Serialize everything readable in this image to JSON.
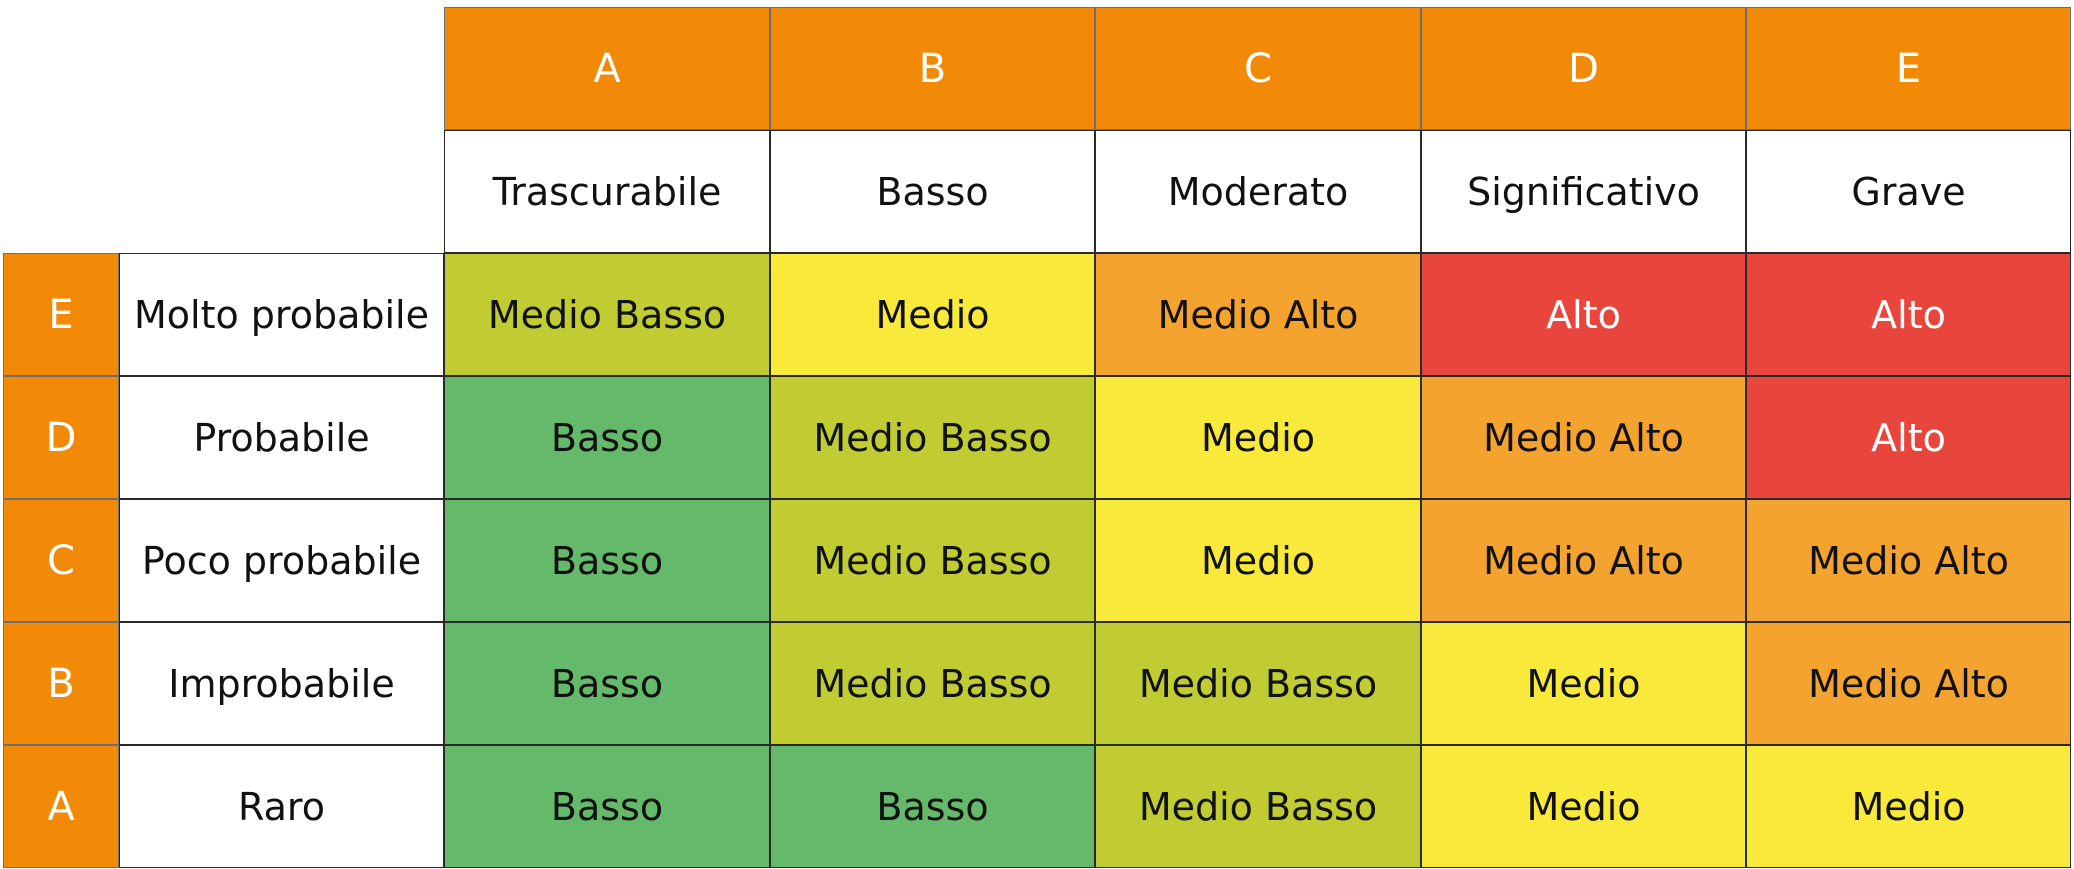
{
  "columns": [
    {
      "code": "A",
      "label": "Trascurabile"
    },
    {
      "code": "B",
      "label": "Basso"
    },
    {
      "code": "C",
      "label": "Moderato"
    },
    {
      "code": "D",
      "label": "Significativo"
    },
    {
      "code": "E",
      "label": "Grave"
    }
  ],
  "rows": [
    {
      "code": "E",
      "label": "Molto probabile",
      "cells": [
        {
          "text": "Medio Basso",
          "color": "#c0cc32"
        },
        {
          "text": "Medio",
          "color": "#f9e93b"
        },
        {
          "text": "Medio Alto",
          "color": "#f4a42e"
        },
        {
          "text": "Alto",
          "color": "#e8463d",
          "text_color": "#ffffff"
        },
        {
          "text": "Alto",
          "color": "#e8463d",
          "text_color": "#ffffff"
        }
      ]
    },
    {
      "code": "D",
      "label": "Probabile",
      "cells": [
        {
          "text": "Basso",
          "color": "#65b96a"
        },
        {
          "text": "Medio Basso",
          "color": "#c0cc32"
        },
        {
          "text": "Medio",
          "color": "#f9e93b"
        },
        {
          "text": "Medio Alto",
          "color": "#f4a42e"
        },
        {
          "text": "Alto",
          "color": "#e8463d",
          "text_color": "#ffffff"
        }
      ]
    },
    {
      "code": "C",
      "label": "Poco probabile",
      "cells": [
        {
          "text": "Basso",
          "color": "#65b96a"
        },
        {
          "text": "Medio Basso",
          "color": "#c0cc32"
        },
        {
          "text": "Medio",
          "color": "#f9e93b"
        },
        {
          "text": "Medio Alto",
          "color": "#f4a42e"
        },
        {
          "text": "Medio Alto",
          "color": "#f4a42e"
        }
      ]
    },
    {
      "code": "B",
      "label": "Improbabile",
      "cells": [
        {
          "text": "Basso",
          "color": "#65b96a"
        },
        {
          "text": "Medio Basso",
          "color": "#c0cc32"
        },
        {
          "text": "Medio Basso",
          "color": "#c0cc32"
        },
        {
          "text": "Medio",
          "color": "#f9e93b"
        },
        {
          "text": "Medio Alto",
          "color": "#f4a42e"
        }
      ]
    },
    {
      "code": "A",
      "label": "Raro",
      "cells": [
        {
          "text": "Basso",
          "color": "#65b96a"
        },
        {
          "text": "Basso",
          "color": "#65b96a"
        },
        {
          "text": "Medio Basso",
          "color": "#c0cc32"
        },
        {
          "text": "Medio",
          "color": "#f9e93b"
        },
        {
          "text": "Medio",
          "color": "#f9e93b"
        }
      ]
    }
  ]
}
